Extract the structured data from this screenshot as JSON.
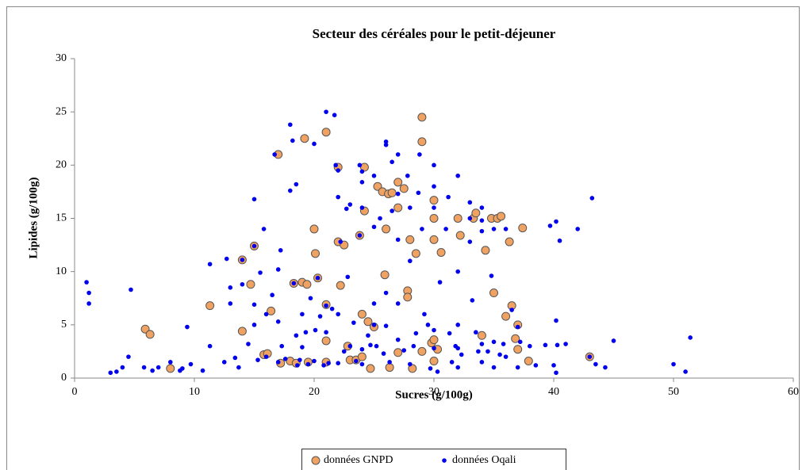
{
  "chart_data": {
    "type": "scatter",
    "title": "Secteur des céréales pour le petit-déjeuner",
    "x_label": "Sucres (g/100g)",
    "y_label": "Lipides (g/100g)",
    "xlim": [
      0,
      60
    ],
    "xticks": [
      0,
      10,
      20,
      30,
      40,
      50,
      60
    ],
    "ylim": [
      0,
      30
    ],
    "yticks": [
      0,
      5,
      10,
      15,
      20,
      25,
      30
    ],
    "grid": false,
    "legend": "bottom",
    "series": [
      {
        "name": "données GNPD",
        "color": "#f0a262",
        "x": [
          5.9,
          6.3,
          8,
          11.3,
          14,
          14,
          14.7,
          15,
          15.8,
          16.1,
          16.4,
          17,
          17.2,
          18,
          18.3,
          18.5,
          19,
          19.2,
          19.4,
          19.5,
          20,
          20.1,
          20.3,
          21,
          21,
          21,
          21,
          22,
          22,
          22.2,
          22.5,
          22.8,
          23,
          23.5,
          23.8,
          24,
          24,
          24.2,
          24.2,
          24.5,
          24.7,
          25,
          25.3,
          25.7,
          25.9,
          26,
          26.2,
          26.5,
          26.3,
          27,
          27,
          27,
          27.5,
          27.8,
          27.8,
          28,
          28.2,
          28.5,
          29,
          29,
          29,
          29.8,
          30,
          30,
          30,
          30,
          30,
          30.3,
          30.6,
          32,
          32.2,
          33.3,
          33.5,
          34,
          34.3,
          34.8,
          35,
          35.3,
          35.6,
          36,
          36.3,
          36.5,
          36.8,
          37,
          37.4,
          37.9,
          37,
          43
        ],
        "values": [
          4.6,
          4.1,
          0.9,
          6.8,
          11.1,
          4.4,
          8.8,
          12.4,
          2.2,
          2.3,
          6.3,
          21,
          1.4,
          1.6,
          8.9,
          1.4,
          9,
          22.5,
          8.8,
          1.5,
          14,
          11.7,
          9.4,
          6.9,
          23.1,
          3.5,
          1.5,
          19.8,
          12.8,
          8.7,
          12.5,
          3,
          1.7,
          1.7,
          13.4,
          6,
          2,
          15.7,
          19.8,
          5.3,
          0.9,
          4.8,
          18,
          17.5,
          9.7,
          14,
          17.3,
          17.4,
          1,
          16,
          18.4,
          2.4,
          17.8,
          8.2,
          7.6,
          13,
          0.9,
          11.7,
          24.5,
          22.2,
          2.5,
          3.3,
          16.7,
          15,
          13,
          3.6,
          1.6,
          2.7,
          11.8,
          15,
          13.4,
          15,
          15.5,
          4,
          12,
          15,
          8,
          15,
          15.2,
          5.8,
          12.8,
          6.8,
          3.7,
          2.7,
          14.1,
          1.6,
          5,
          2
        ]
      },
      {
        "name": "données Oqali",
        "color": "#0000ee",
        "x": [
          1,
          1.2,
          1.2,
          3,
          3.5,
          4,
          4.5,
          4.7,
          5.8,
          6.5,
          7,
          8,
          8.8,
          9,
          9.4,
          9.7,
          10.7,
          11.3,
          11.3,
          12.5,
          12.7,
          13,
          13,
          13.4,
          13.7,
          14,
          14,
          14.5,
          15,
          15,
          15,
          15,
          15.3,
          15.5,
          15.8,
          16,
          16,
          16.5,
          16.7,
          17,
          17,
          17,
          17.2,
          17.3,
          17.6,
          18,
          18,
          18.2,
          18.3,
          18.5,
          18.5,
          18.6,
          18.8,
          19,
          19,
          19.3,
          19.5,
          19.7,
          20,
          20,
          20.1,
          20.3,
          20.5,
          20.8,
          21,
          21,
          21,
          21.2,
          21.5,
          21.7,
          21.8,
          22,
          22,
          22,
          22,
          22.2,
          22.5,
          22.7,
          22.8,
          23,
          23,
          23.3,
          23.5,
          23.8,
          23.8,
          24,
          24,
          24,
          24,
          24,
          24.5,
          24.7,
          25,
          25,
          25,
          25,
          25.2,
          25.5,
          25.8,
          26,
          26,
          26,
          26,
          26.3,
          26.5,
          26.5,
          27,
          27,
          27,
          27,
          27,
          27.5,
          27.8,
          28,
          28,
          28,
          28.3,
          28.5,
          28.7,
          28.8,
          29,
          29.2,
          29.5,
          29.7,
          30,
          30,
          30,
          30,
          30,
          30.3,
          30.5,
          31,
          31.2,
          31.3,
          31.5,
          31.8,
          32,
          32,
          32,
          32,
          32,
          32.3,
          33,
          33,
          33,
          33.2,
          33.5,
          33.7,
          34,
          34,
          34,
          34,
          34,
          34.5,
          34.8,
          35,
          35,
          35,
          35.5,
          35.8,
          36,
          36,
          36.5,
          37,
          37,
          37.2,
          38,
          38.5,
          39.3,
          39.7,
          40,
          40.2,
          40.2,
          40.2,
          40.3,
          40.5,
          41,
          42,
          43,
          43.2,
          43.5,
          44.3,
          45,
          50,
          51,
          51.4
        ],
        "values": [
          9,
          8,
          7,
          0.5,
          0.6,
          1,
          2,
          8.3,
          1,
          0.7,
          1,
          1.5,
          0.7,
          0.9,
          4.8,
          1.3,
          0.7,
          3,
          10.7,
          1.5,
          11.2,
          8.5,
          7,
          1.9,
          1,
          8.8,
          11.1,
          3.2,
          16.8,
          12.4,
          6.9,
          5,
          1.7,
          9.9,
          14,
          2,
          6,
          7.8,
          21,
          5.3,
          1.5,
          10.2,
          12,
          3,
          1.8,
          17.6,
          23.8,
          22.3,
          8.9,
          18.2,
          4,
          1.2,
          1.7,
          6,
          2.9,
          4.3,
          1.3,
          7.5,
          1.6,
          22,
          4.5,
          9.4,
          5.8,
          1.2,
          25,
          4.3,
          6.8,
          1.4,
          6.5,
          24.7,
          20,
          17,
          19.5,
          6,
          1.4,
          12.8,
          2.5,
          15.9,
          9.5,
          16.3,
          3,
          5.2,
          1.6,
          20,
          13.4,
          16,
          19.4,
          18.4,
          2.7,
          1.3,
          4,
          3.1,
          5,
          19,
          14.2,
          7,
          3,
          15,
          2.3,
          22.2,
          21.9,
          8,
          4.9,
          1.5,
          15.7,
          20.3,
          21,
          13,
          7,
          3.6,
          17.3,
          2.6,
          19,
          16,
          11,
          1.3,
          3,
          4.2,
          17.4,
          21,
          14,
          6,
          5,
          0.9,
          20,
          18,
          16,
          4.5,
          2.8,
          0.6,
          9,
          14,
          17,
          4.2,
          1.5,
          3,
          19,
          10,
          5,
          2.8,
          1,
          2.2,
          16.5,
          15,
          12.8,
          7.3,
          4.3,
          2.5,
          16,
          14.8,
          13.8,
          3.2,
          1.5,
          2.5,
          9.6,
          14,
          3.4,
          1,
          2.2,
          3.2,
          14,
          2,
          6.4,
          4.8,
          1,
          3.4,
          3,
          1.2,
          3.1,
          14.3,
          1.2,
          14.7,
          5.4,
          0.5,
          3.1,
          12.9,
          3.2,
          14,
          2,
          16.9,
          1.3,
          1,
          3.5,
          1.3,
          0.6,
          3.8
        ]
      }
    ]
  }
}
